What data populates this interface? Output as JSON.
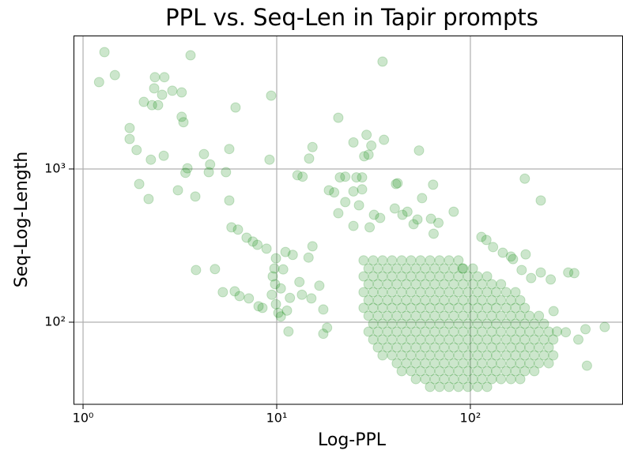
{
  "chart_data": {
    "type": "scatter",
    "title": "PPL vs. Seq-Len in Tapir prompts",
    "x_label": "Log-PPL",
    "y_label": "Seq-Log-Length",
    "xscale": "log",
    "yscale": "log",
    "xlim": [
      0.893,
      614
    ],
    "ylim": [
      29.1,
      7430
    ],
    "xticks": [
      {
        "value": 1,
        "label": "10⁰"
      },
      {
        "value": 10,
        "label": "10¹"
      },
      {
        "value": 100,
        "label": "10²"
      }
    ],
    "yticks": [
      {
        "value": 100,
        "label": "10²"
      },
      {
        "value": 1000,
        "label": "10³"
      }
    ],
    "grid": true,
    "color": "#008000",
    "alpha": 0.2,
    "x": [
      1.21,
      1.29,
      1.46,
      2.35,
      2.63,
      2.33,
      2.56,
      2.89,
      3.23,
      2.06,
      2.27,
      2.44,
      3.59,
      3.23,
      3.3,
      6.13,
      9.36,
      35.2,
      1.74,
      1.74,
      1.89,
      2.24,
      2.61,
      4.21,
      5.69,
      9.18,
      20.8,
      29.1,
      35.8,
      54.3,
      24.9,
      15.3,
      14.7,
      29.8,
      28.3,
      30.8,
      3.46,
      3.38,
      4.53,
      4.46,
      5.47,
      1.95,
      2.18,
      3.09,
      3.8,
      5.69,
      12.8,
      13.6,
      18.6,
      19.8,
      21.2,
      22.6,
      25.8,
      27.6,
      27.6,
      24.9,
      22.6,
      42.1,
      41.3,
      64.2,
      56.3,
      191,
      231,
      20.8,
      26.6,
      31.8,
      34.2,
      40.7,
      44.6,
      47.3,
      53.3,
      62.6,
      82.0,
      30.2,
      24.9,
      50.9,
      64.6,
      68.4,
      5.84,
      6.31,
      6.99,
      7.53,
      7.95,
      3.83,
      4.8,
      5.27,
      6.07,
      6.43,
      7.18,
      8.44,
      8.06,
      9.73,
      9.54,
      9.81,
      9.43,
      9.91,
      11.1,
      10.8,
      10.5,
      9.91,
      10.2,
      10.5,
      11.3,
      11.7,
      12.1,
      13.1,
      13.5,
      14.6,
      15.1,
      16.6,
      17.4,
      18.2,
      17.4,
      8.86,
      15.3,
      11.5,
      121,
      131,
      147,
      166,
      193,
      162,
      184,
      206,
      231,
      260,
      320,
      344,
      269,
      280,
      311,
      361,
      393,
      494,
      400,
      114,
      91,
      28.1,
      31.5,
      35.2,
      39.4,
      44.2,
      49.4,
      55.3,
      61.9,
      69.3,
      77.6,
      86.8,
      29.8,
      33.3,
      37.3,
      41.7,
      46.7,
      52.3,
      58.5,
      65.5,
      73.3,
      82.1,
      91.9,
      103,
      28.1,
      31.5,
      35.2,
      39.4,
      44.2,
      49.4,
      55.3,
      61.9,
      69.3,
      77.6,
      86.8,
      97.2,
      109,
      122,
      29.8,
      33.3,
      37.3,
      41.7,
      46.7,
      52.3,
      58.5,
      65.5,
      73.3,
      82.1,
      91.9,
      103,
      115,
      129,
      144,
      28.1,
      31.5,
      35.2,
      39.4,
      44.2,
      49.4,
      55.3,
      61.9,
      69.3,
      77.6,
      86.8,
      97.2,
      109,
      122,
      136,
      153,
      171,
      29.8,
      33.3,
      37.3,
      41.7,
      46.7,
      52.3,
      58.5,
      65.5,
      73.3,
      82.1,
      91.9,
      103,
      115,
      129,
      144,
      162,
      181,
      28.1,
      31.5,
      35.2,
      39.4,
      44.2,
      49.4,
      55.3,
      61.9,
      69.3,
      77.6,
      86.8,
      97.2,
      109,
      122,
      136,
      153,
      171,
      191,
      29.8,
      33.3,
      37.3,
      41.7,
      46.7,
      52.3,
      58.5,
      65.5,
      73.3,
      82.1,
      91.9,
      103,
      115,
      129,
      144,
      162,
      181,
      202,
      226,
      31.5,
      35.2,
      39.4,
      44.2,
      49.4,
      55.3,
      61.9,
      69.3,
      77.6,
      86.8,
      97.2,
      109,
      122,
      136,
      153,
      171,
      191,
      214,
      240,
      29.8,
      33.3,
      37.3,
      41.7,
      46.7,
      52.3,
      58.5,
      65.5,
      73.3,
      82.1,
      91.9,
      103,
      115,
      129,
      144,
      162,
      181,
      202,
      226,
      254,
      31.5,
      35.2,
      39.4,
      44.2,
      49.4,
      55.3,
      61.9,
      69.3,
      77.6,
      86.8,
      97.2,
      109,
      122,
      136,
      153,
      171,
      191,
      214,
      240,
      268,
      33.3,
      37.3,
      41.7,
      46.7,
      52.3,
      58.5,
      65.5,
      73.3,
      82.1,
      91.9,
      103,
      115,
      129,
      144,
      162,
      181,
      202,
      226,
      254,
      35.2,
      39.4,
      44.2,
      49.4,
      55.3,
      61.9,
      69.3,
      77.6,
      86.8,
      97.2,
      109,
      122,
      136,
      153,
      171,
      191,
      214,
      240,
      268,
      41.7,
      46.7,
      52.3,
      58.5,
      65.5,
      73.3,
      82.1,
      91.9,
      103,
      115,
      129,
      144,
      162,
      181,
      202,
      226,
      254,
      44.2,
      49.4,
      55.3,
      61.9,
      69.3,
      77.6,
      86.8,
      97.2,
      109,
      122,
      136,
      153,
      171,
      191,
      214,
      52.3,
      58.5,
      65.5,
      73.3,
      82.1,
      91.9,
      103,
      115,
      129,
      144,
      162,
      181,
      61.9,
      69.3,
      77.6,
      86.8,
      97.2,
      109,
      122
    ],
    "y": [
      3690,
      5790,
      4100,
      3970,
      3970,
      3360,
      3050,
      3240,
      3160,
      2740,
      2610,
      2610,
      5520,
      2190,
      2020,
      2520,
      3010,
      5020,
      1850,
      1570,
      1330,
      1150,
      1220,
      1250,
      1350,
      1150,
      2160,
      1670,
      1550,
      1320,
      1490,
      1390,
      1170,
      1240,
      1210,
      1420,
      1010,
      944,
      1070,
      953,
      953,
      798,
      637,
      726,
      661,
      623,
      910,
      891,
      726,
      703,
      881,
      891,
      881,
      881,
      736,
      714,
      608,
      808,
      798,
      790,
      645,
      864,
      623,
      514,
      579,
      502,
      479,
      552,
      502,
      526,
      468,
      473,
      526,
      416,
      425,
      436,
      378,
      445,
      416,
      402,
      356,
      336,
      320,
      219,
      222,
      157,
      159,
      148,
      143,
      124,
      127,
      224,
      199,
      177,
      151,
      261,
      287,
      221,
      166,
      131,
      115,
      109,
      119,
      144,
      275,
      183,
      151,
      264,
      143,
      173,
      121,
      92,
      84,
      302,
      313,
      87,
      344,
      309,
      284,
      258,
      277,
      268,
      219,
      194,
      211,
      190,
      211,
      209,
      118,
      87,
      86,
      77,
      90,
      93,
      52,
      360,
      224,
      253,
      253,
      253,
      253,
      253,
      253,
      253,
      253,
      253,
      253,
      253,
      224,
      224,
      224,
      224,
      224,
      224,
      224,
      224,
      224,
      224,
      224,
      224,
      199,
      199,
      199,
      199,
      199,
      199,
      199,
      199,
      199,
      199,
      199,
      199,
      199,
      199,
      177,
      177,
      177,
      177,
      177,
      177,
      177,
      177,
      177,
      177,
      177,
      177,
      177,
      177,
      177,
      157,
      157,
      157,
      157,
      157,
      157,
      157,
      157,
      157,
      157,
      157,
      157,
      157,
      157,
      157,
      157,
      157,
      139,
      139,
      139,
      139,
      139,
      139,
      139,
      139,
      139,
      139,
      139,
      139,
      139,
      139,
      139,
      139,
      139,
      124,
      124,
      124,
      124,
      124,
      124,
      124,
      124,
      124,
      124,
      124,
      124,
      124,
      124,
      124,
      124,
      124,
      124,
      110,
      110,
      110,
      110,
      110,
      110,
      110,
      110,
      110,
      110,
      110,
      110,
      110,
      110,
      110,
      110,
      110,
      110,
      110,
      97.6,
      97.6,
      97.6,
      97.6,
      97.6,
      97.6,
      97.6,
      97.6,
      97.6,
      97.6,
      97.6,
      97.6,
      97.6,
      97.6,
      97.6,
      97.6,
      97.6,
      97.6,
      97.6,
      86.7,
      86.7,
      86.7,
      86.7,
      86.7,
      86.7,
      86.7,
      86.7,
      86.7,
      86.7,
      86.7,
      86.7,
      86.7,
      86.7,
      86.7,
      86.7,
      86.7,
      86.7,
      86.7,
      86.7,
      77.0,
      77.0,
      77.0,
      77.0,
      77.0,
      77.0,
      77.0,
      77.0,
      77.0,
      77.0,
      77.0,
      77.0,
      77.0,
      77.0,
      77.0,
      77.0,
      77.0,
      77.0,
      77.0,
      77.0,
      68.4,
      68.4,
      68.4,
      68.4,
      68.4,
      68.4,
      68.4,
      68.4,
      68.4,
      68.4,
      68.4,
      68.4,
      68.4,
      68.4,
      68.4,
      68.4,
      68.4,
      68.4,
      68.4,
      60.7,
      60.7,
      60.7,
      60.7,
      60.7,
      60.7,
      60.7,
      60.7,
      60.7,
      60.7,
      60.7,
      60.7,
      60.7,
      60.7,
      60.7,
      60.7,
      60.7,
      60.7,
      60.7,
      53.9,
      53.9,
      53.9,
      53.9,
      53.9,
      53.9,
      53.9,
      53.9,
      53.9,
      53.9,
      53.9,
      53.9,
      53.9,
      53.9,
      53.9,
      53.9,
      53.9,
      47.9,
      47.9,
      47.9,
      47.9,
      47.9,
      47.9,
      47.9,
      47.9,
      47.9,
      47.9,
      47.9,
      47.9,
      47.9,
      47.9,
      47.9,
      42.5,
      42.5,
      42.5,
      42.5,
      42.5,
      42.5,
      42.5,
      42.5,
      42.5,
      42.5,
      42.5,
      42.5,
      37.8,
      37.8,
      37.8,
      37.8,
      37.8,
      37.8,
      37.8
    ]
  }
}
